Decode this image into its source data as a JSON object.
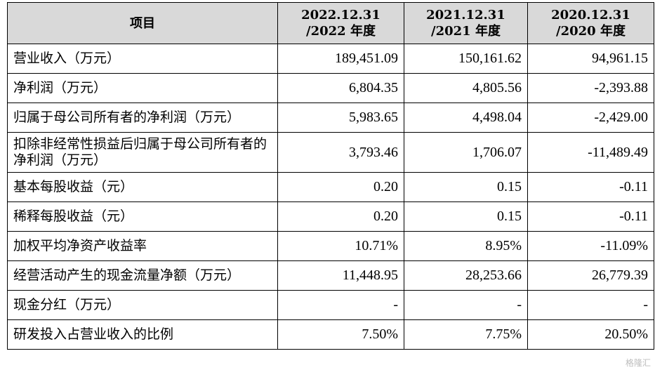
{
  "table": {
    "headers": [
      {
        "lines": [
          "项目"
        ]
      },
      {
        "lines": [
          "2022.12.31",
          "/2022 年度"
        ]
      },
      {
        "lines": [
          "2021.12.31",
          "/2021 年度"
        ]
      },
      {
        "lines": [
          "2020.12.31",
          "/2020 年度"
        ]
      }
    ],
    "rows": [
      {
        "label": "营业收入（万元）",
        "values": [
          "189,451.09",
          "150,161.62",
          "94,961.15"
        ]
      },
      {
        "label": "净利润（万元）",
        "values": [
          "6,804.35",
          "4,805.56",
          "-2,393.88"
        ]
      },
      {
        "label": "归属于母公司所有者的净利润（万元）",
        "values": [
          "5,983.65",
          "4,498.04",
          "-2,429.00"
        ]
      },
      {
        "label": "扣除非经常性损益后归属于母公司所有者的净利润（万元）",
        "values": [
          "3,793.46",
          "1,706.07",
          "-11,489.49"
        ]
      },
      {
        "label": "基本每股收益（元）",
        "values": [
          "0.20",
          "0.15",
          "-0.11"
        ]
      },
      {
        "label": "稀释每股收益（元）",
        "values": [
          "0.20",
          "0.15",
          "-0.11"
        ]
      },
      {
        "label": "加权平均净资产收益率",
        "values": [
          "10.71%",
          "8.95%",
          "-11.09%"
        ]
      },
      {
        "label": "经营活动产生的现金流量净额（万元）",
        "values": [
          "11,448.95",
          "28,253.66",
          "26,779.39"
        ]
      },
      {
        "label": "现金分红（万元）",
        "values": [
          "-",
          "-",
          "-"
        ]
      },
      {
        "label": "研发投入占营业收入的比例",
        "values": [
          "7.50%",
          "7.75%",
          "20.50%"
        ]
      }
    ]
  },
  "watermark": "格隆汇"
}
